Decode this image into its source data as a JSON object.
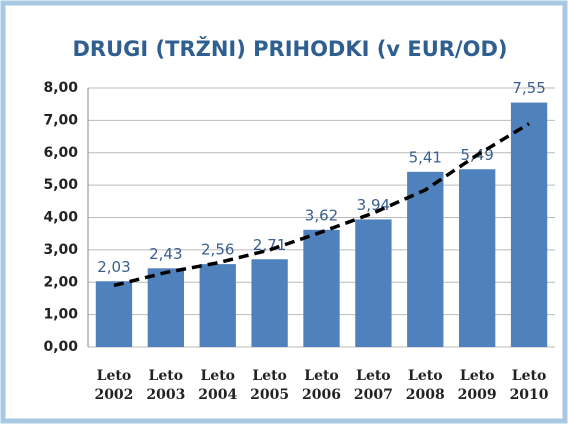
{
  "chart_data": {
    "type": "bar",
    "title": "DRUGI (TRŽNI) PRIHODKI (v EUR/OD)",
    "categories": [
      "Leto 2002",
      "Leto 2003",
      "Leto 2004",
      "Leto 2005",
      "Leto 2006",
      "Leto 2007",
      "Leto 2008",
      "Leto 2009",
      "Leto 2010"
    ],
    "series": [
      {
        "type": "bar",
        "color": "#4f81bd",
        "values": [
          2.03,
          2.43,
          2.56,
          2.71,
          3.62,
          3.94,
          5.41,
          5.49,
          7.55
        ],
        "value_labels": [
          "2,03",
          "2,43",
          "2,56",
          "2,71",
          "3,62",
          "3,94",
          "5,41",
          "5,49",
          "7,55"
        ]
      },
      {
        "type": "line",
        "color": "#000000",
        "dashed": true,
        "values": [
          1.9,
          2.3,
          2.6,
          3.0,
          3.55,
          4.14,
          4.85,
          5.93,
          6.9
        ]
      }
    ],
    "ylim": [
      0,
      8
    ],
    "yticks": [
      {
        "value": 0,
        "label": "0,00"
      },
      {
        "value": 1,
        "label": "1,00"
      },
      {
        "value": 2,
        "label": "2,00"
      },
      {
        "value": 3,
        "label": "3,00"
      },
      {
        "value": 4,
        "label": "4,00"
      },
      {
        "value": 5,
        "label": "5,00"
      },
      {
        "value": 6,
        "label": "6,00"
      },
      {
        "value": 7,
        "label": "7,00"
      },
      {
        "value": 8,
        "label": "8,00"
      }
    ],
    "grid": true
  }
}
